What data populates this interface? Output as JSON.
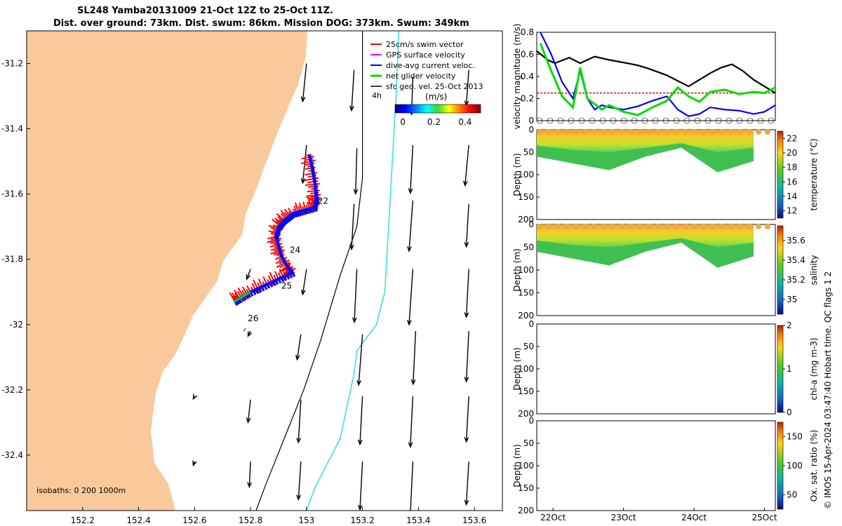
{
  "title": {
    "line1": "SL248 Yamba20131009 21-Oct 12Z to 25-Oct 11Z.",
    "line2": "Dist. over ground: 73km. Dist. swum: 86km. Mission DOG: 373km. Swum: 349km"
  },
  "credit": "© IMOS 15-Apr-2024 03:47:40 Hobart time. QC flags 1  2",
  "colors": {
    "land": "#f9c99b",
    "swim": "#ff0000",
    "gps": "#ff00ff",
    "dive": "#0000ff",
    "net": "#00dd00",
    "geo": "#000000",
    "isobath200": "#000000",
    "isobath1000": "#33dddd"
  },
  "chart_data": [
    {
      "type": "map",
      "xlim": [
        152.0,
        153.7
      ],
      "ylim": [
        -32.57,
        -31.1
      ],
      "xticks": [
        "152.2",
        "152.4",
        "152.6",
        "152.8",
        "153",
        "153.2",
        "153.4",
        "153.6"
      ],
      "yticks": [
        "-31.2",
        "-31.4",
        "-31.6",
        "-31.8",
        "-32",
        "-32.2",
        "-32.4"
      ],
      "isobath_note": "isobaths: 0   200  1000m",
      "legend": [
        "25cm/s swim vector",
        "GPS surface velocity",
        "dive-avg current veloc.",
        "net glider velocity",
        "sfc geo. vel. 25-Oct 2013"
      ],
      "legend_extra": "4h",
      "colorbar": {
        "label": "(m/s)",
        "ticks": [
          "0",
          "0.2",
          "0.4"
        ],
        "range": [
          -0.05,
          0.5
        ]
      },
      "day_labels": [
        {
          "text": "22",
          "lon": 153.04,
          "lat": -31.63
        },
        {
          "text": "24",
          "lon": 152.94,
          "lat": -31.78
        },
        {
          "text": "25",
          "lon": 152.91,
          "lat": -31.89
        },
        {
          "text": "26",
          "lon": 152.79,
          "lat": -31.99
        }
      ],
      "track": [
        [
          153.01,
          -31.48
        ],
        [
          153.02,
          -31.52
        ],
        [
          153.03,
          -31.57
        ],
        [
          153.035,
          -31.61
        ],
        [
          153.03,
          -31.64
        ],
        [
          152.99,
          -31.65
        ],
        [
          152.95,
          -31.66
        ],
        [
          152.92,
          -31.68
        ],
        [
          152.9,
          -31.7
        ],
        [
          152.89,
          -31.73
        ],
        [
          152.9,
          -31.76
        ],
        [
          152.91,
          -31.79
        ],
        [
          152.93,
          -31.82
        ],
        [
          152.95,
          -31.84
        ],
        [
          152.9,
          -31.86
        ],
        [
          152.85,
          -31.88
        ],
        [
          152.8,
          -31.9
        ],
        [
          152.76,
          -31.92
        ],
        [
          152.74,
          -31.93
        ]
      ],
      "geo_vectors": [
        {
          "lon": 153.0,
          "lat": -31.2,
          "u": -0.03,
          "v": -0.3
        },
        {
          "lon": 153.17,
          "lat": -31.22,
          "u": -0.02,
          "v": -0.32
        },
        {
          "lon": 153.38,
          "lat": -31.24,
          "u": -0.01,
          "v": -0.3
        },
        {
          "lon": 153.58,
          "lat": -31.22,
          "u": -0.02,
          "v": -0.28
        },
        {
          "lon": 153.0,
          "lat": -31.45,
          "u": -0.03,
          "v": -0.3
        },
        {
          "lon": 153.18,
          "lat": -31.46,
          "u": -0.01,
          "v": -0.36
        },
        {
          "lon": 153.38,
          "lat": -31.45,
          "u": -0.02,
          "v": -0.38
        },
        {
          "lon": 153.58,
          "lat": -31.45,
          "u": -0.03,
          "v": -0.32
        },
        {
          "lon": 153.17,
          "lat": -31.63,
          "u": -0.02,
          "v": -0.36
        },
        {
          "lon": 153.38,
          "lat": -31.62,
          "u": -0.03,
          "v": -0.4
        },
        {
          "lon": 153.58,
          "lat": -31.63,
          "u": -0.02,
          "v": -0.34
        },
        {
          "lon": 152.8,
          "lat": -31.83,
          "u": -0.03,
          "v": -0.08
        },
        {
          "lon": 153.0,
          "lat": -31.83,
          "u": -0.03,
          "v": -0.2
        },
        {
          "lon": 153.18,
          "lat": -31.83,
          "u": -0.02,
          "v": -0.42
        },
        {
          "lon": 153.38,
          "lat": -31.83,
          "u": -0.03,
          "v": -0.44
        },
        {
          "lon": 153.58,
          "lat": -31.83,
          "u": -0.02,
          "v": -0.38
        },
        {
          "lon": 152.8,
          "lat": -32.02,
          "u": -0.02,
          "v": -0.04
        },
        {
          "lon": 152.98,
          "lat": -32.03,
          "u": -0.03,
          "v": -0.2
        },
        {
          "lon": 153.2,
          "lat": -32.03,
          "u": -0.03,
          "v": -0.4
        },
        {
          "lon": 153.39,
          "lat": -32.02,
          "u": -0.02,
          "v": -0.42
        },
        {
          "lon": 153.58,
          "lat": -32.02,
          "u": -0.02,
          "v": -0.4
        },
        {
          "lon": 152.6,
          "lat": -32.22,
          "u": -0.01,
          "v": -0.02
        },
        {
          "lon": 152.8,
          "lat": -32.23,
          "u": -0.02,
          "v": -0.18
        },
        {
          "lon": 152.98,
          "lat": -32.23,
          "u": -0.02,
          "v": -0.34
        },
        {
          "lon": 153.2,
          "lat": -32.22,
          "u": -0.02,
          "v": -0.38
        },
        {
          "lon": 153.38,
          "lat": -32.22,
          "u": -0.02,
          "v": -0.4
        },
        {
          "lon": 153.58,
          "lat": -32.22,
          "u": -0.02,
          "v": -0.36
        },
        {
          "lon": 152.6,
          "lat": -32.42,
          "u": -0.01,
          "v": -0.03
        },
        {
          "lon": 152.8,
          "lat": -32.42,
          "u": -0.01,
          "v": -0.2
        },
        {
          "lon": 152.98,
          "lat": -32.42,
          "u": -0.02,
          "v": -0.3
        },
        {
          "lon": 153.2,
          "lat": -32.42,
          "u": -0.02,
          "v": -0.38
        },
        {
          "lon": 153.38,
          "lat": -32.42,
          "u": -0.02,
          "v": -0.42
        },
        {
          "lon": 153.58,
          "lat": -32.42,
          "u": -0.02,
          "v": -0.34
        }
      ],
      "isobath_200": [
        [
          153.2,
          -31.1
        ],
        [
          153.2,
          -31.55
        ],
        [
          153.18,
          -31.7
        ],
        [
          153.12,
          -31.85
        ],
        [
          153.05,
          -32.05
        ],
        [
          152.99,
          -32.2
        ],
        [
          152.92,
          -32.35
        ],
        [
          152.85,
          -32.5
        ],
        [
          152.82,
          -32.57
        ]
      ],
      "isobath_1000": [
        [
          153.33,
          -31.1
        ],
        [
          153.32,
          -31.3
        ],
        [
          153.3,
          -31.6
        ],
        [
          153.29,
          -31.75
        ],
        [
          153.28,
          -31.9
        ],
        [
          153.25,
          -32.0
        ],
        [
          153.18,
          -32.08
        ],
        [
          153.17,
          -32.15
        ],
        [
          153.12,
          -32.35
        ],
        [
          153.03,
          -32.5
        ],
        [
          153.0,
          -32.57
        ]
      ]
    },
    {
      "type": "line",
      "ylabel": "velocity magnitude (m/s)",
      "ylim": [
        0,
        0.8
      ],
      "yticks": [
        "0",
        "0.2",
        "0.4",
        "0.6",
        "0.8"
      ],
      "reference_line": 0.25,
      "series": [
        {
          "color": "#000000",
          "x": [
            0,
            0.3,
            0.5,
            0.9,
            1.2,
            1.6,
            2.0,
            2.5,
            2.8,
            3.1,
            3.35,
            3.6,
            3.9,
            4.2,
            4.5,
            4.8,
            5.1,
            5.4,
            5.7,
            6.0,
            6.3,
            6.6
          ],
          "values": [
            0.63,
            0.55,
            0.52,
            0.57,
            0.52,
            0.58,
            0.55,
            0.52,
            0.5,
            0.47,
            0.44,
            0.41,
            0.36,
            0.31,
            0.37,
            0.43,
            0.48,
            0.51,
            0.45,
            0.37,
            0.31,
            0.25
          ]
        },
        {
          "color": "#0000ff",
          "x": [
            0.1,
            0.4,
            0.7,
            1.0,
            1.2,
            1.4,
            1.6,
            1.8,
            2.0,
            2.4,
            2.8,
            3.2,
            3.6,
            3.9,
            4.2,
            4.5,
            4.8,
            5.2,
            5.6,
            6.0,
            6.3,
            6.6
          ],
          "values": [
            0.8,
            0.6,
            0.35,
            0.2,
            0.45,
            0.2,
            0.1,
            0.14,
            0.12,
            0.1,
            0.13,
            0.18,
            0.22,
            0.1,
            0.04,
            0.06,
            0.12,
            0.1,
            0.09,
            0.06,
            0.08,
            0.14
          ]
        },
        {
          "color": "#00dd00",
          "x": [
            0.1,
            0.4,
            0.7,
            1.0,
            1.2,
            1.4,
            1.6,
            1.8,
            2.0,
            2.4,
            2.8,
            3.2,
            3.6,
            3.9,
            4.2,
            4.5,
            4.8,
            5.2,
            5.6,
            6.0,
            6.3,
            6.6
          ],
          "values": [
            0.7,
            0.45,
            0.22,
            0.12,
            0.48,
            0.2,
            0.15,
            0.1,
            0.14,
            0.08,
            0.05,
            0.12,
            0.18,
            0.3,
            0.22,
            0.17,
            0.26,
            0.28,
            0.24,
            0.26,
            0.25,
            0.3
          ]
        }
      ]
    },
    {
      "type": "heatmap",
      "ylabel": "Depth (m)",
      "ylim": [
        200,
        0
      ],
      "yticks": [
        "0",
        "50",
        "100",
        "150",
        "200"
      ],
      "colorbar_label": "temperature (°C)",
      "colorbar_ticks": [
        "12",
        "14",
        "16",
        "18",
        "20",
        "22"
      ],
      "colorbar_range": [
        11,
        23
      ],
      "profile_depth": [
        {
          "x": 0,
          "values": [
            22,
            19,
            17
          ],
          "depth": [
            0,
            35,
            60
          ]
        },
        {
          "x": 1,
          "values": [
            22,
            19,
            17
          ],
          "depth": [
            0,
            45,
            75
          ]
        },
        {
          "x": 2,
          "values": [
            22,
            19,
            17
          ],
          "depth": [
            0,
            50,
            90
          ]
        },
        {
          "x": 3,
          "values": [
            22,
            19,
            17
          ],
          "depth": [
            0,
            40,
            60
          ]
        },
        {
          "x": 4,
          "values": [
            22,
            19,
            17
          ],
          "depth": [
            0,
            30,
            40
          ]
        },
        {
          "x": 5,
          "values": [
            22,
            19,
            17
          ],
          "depth": [
            0,
            50,
            95
          ]
        },
        {
          "x": 6,
          "values": [
            22,
            19,
            17
          ],
          "depth": [
            0,
            40,
            70
          ]
        }
      ]
    },
    {
      "type": "heatmap",
      "ylabel": "Depth (m)",
      "ylim": [
        200,
        0
      ],
      "yticks": [
        "0",
        "50",
        "100",
        "150",
        "200"
      ],
      "colorbar_label": "salinity",
      "colorbar_ticks": [
        "35",
        "35.2",
        "35.4",
        "35.6"
      ],
      "colorbar_range": [
        34.85,
        35.75
      ],
      "profile_depth": [
        {
          "x": 0,
          "values": [
            35.6,
            35.45,
            35.3
          ],
          "depth": [
            0,
            35,
            60
          ]
        },
        {
          "x": 1,
          "values": [
            35.6,
            35.45,
            35.3
          ],
          "depth": [
            0,
            45,
            75
          ]
        },
        {
          "x": 2,
          "values": [
            35.6,
            35.45,
            35.3
          ],
          "depth": [
            0,
            50,
            90
          ]
        },
        {
          "x": 3,
          "values": [
            35.6,
            35.45,
            35.3
          ],
          "depth": [
            0,
            40,
            60
          ]
        },
        {
          "x": 4,
          "values": [
            35.6,
            35.45,
            35.3
          ],
          "depth": [
            0,
            30,
            40
          ]
        },
        {
          "x": 5,
          "values": [
            35.6,
            35.45,
            35.3
          ],
          "depth": [
            0,
            50,
            95
          ]
        },
        {
          "x": 6,
          "values": [
            35.6,
            35.45,
            35.3
          ],
          "depth": [
            0,
            40,
            70
          ]
        }
      ]
    },
    {
      "type": "heatmap",
      "ylabel": "Depth (m)",
      "ylim": [
        200,
        0
      ],
      "yticks": [
        "0",
        "50",
        "100",
        "150",
        "200"
      ],
      "colorbar_label": "chl-a (mg m-3)",
      "colorbar_ticks": [
        "0",
        "1",
        "2"
      ],
      "colorbar_range": [
        0,
        2
      ]
    },
    {
      "type": "heatmap",
      "ylabel": "Depth (m)",
      "ylim": [
        200,
        0
      ],
      "yticks": [
        "0",
        "50",
        "100",
        "150",
        "200"
      ],
      "colorbar_label": "Ox. sat. ratio (%)",
      "colorbar_ticks": [
        "50",
        "100",
        "150"
      ],
      "colorbar_range": [
        25,
        175
      ],
      "xticks": [
        "22Oct",
        "23Oct",
        "24Oct",
        "25Oct"
      ]
    }
  ]
}
